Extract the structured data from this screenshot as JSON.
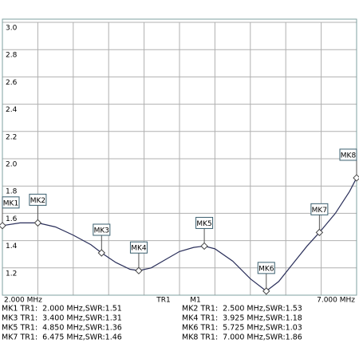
{
  "chart_data": {
    "type": "line",
    "x": [
      2.0,
      2.25,
      2.5,
      2.75,
      3.0,
      3.25,
      3.4,
      3.6,
      3.8,
      3.925,
      4.1,
      4.3,
      4.5,
      4.7,
      4.85,
      5.0,
      5.25,
      5.5,
      5.725,
      5.9,
      6.1,
      6.3,
      6.475,
      6.7,
      6.9,
      7.0
    ],
    "series": [
      {
        "name": "TR1",
        "color": "#2a2f5a",
        "values": [
          1.51,
          1.53,
          1.53,
          1.5,
          1.44,
          1.37,
          1.31,
          1.24,
          1.19,
          1.18,
          1.2,
          1.26,
          1.32,
          1.35,
          1.36,
          1.34,
          1.25,
          1.12,
          1.03,
          1.1,
          1.23,
          1.36,
          1.46,
          1.6,
          1.76,
          1.86
        ]
      }
    ],
    "xlim": [
      2,
      7
    ],
    "xticks": [
      {
        "value": 2,
        "label": "2.000 MHz"
      },
      {
        "value": 2.5,
        "label": null
      },
      {
        "value": 3,
        "label": null
      },
      {
        "value": 3.5,
        "label": null
      },
      {
        "value": 4,
        "label": null
      },
      {
        "value": 4.5,
        "label": null
      },
      {
        "value": 5,
        "label": null
      },
      {
        "value": 5.5,
        "label": null
      },
      {
        "value": 6,
        "label": null
      },
      {
        "value": 6.5,
        "label": null
      },
      {
        "value": 7,
        "label": "7.000 MHz"
      }
    ],
    "ylim": [
      1,
      3
    ],
    "yticks": [
      {
        "value": 1.2,
        "label": "1.2"
      },
      1.4,
      1.6,
      1.8,
      {
        "value": 2,
        "label": "2.0"
      },
      2.2,
      2.4,
      2.6,
      2.8,
      {
        "value": 3,
        "label": "3.0"
      }
    ],
    "grid": true,
    "active_marker": "M1",
    "markers": [
      {
        "label": "MK1",
        "x": 2.0,
        "swr": 1.51
      },
      {
        "label": "MK2",
        "x": 2.5,
        "swr": 1.53
      },
      {
        "label": "MK3",
        "x": 3.4,
        "swr": 1.31
      },
      {
        "label": "MK4",
        "x": 3.925,
        "swr": 1.18
      },
      {
        "label": "MK5",
        "x": 4.85,
        "swr": 1.36
      },
      {
        "label": "MK6",
        "x": 5.725,
        "swr": 1.03
      },
      {
        "label": "MK7",
        "x": 6.475,
        "swr": 1.46
      },
      {
        "label": "MK8",
        "x": 7.0,
        "swr": 1.86
      }
    ],
    "readouts": [
      "MK1 TR1:  2.000 MHz,SWR:1.51",
      "MK2 TR1:  2.500 MHz,SWR:1.53",
      "MK3 TR1:  3.400 MHz,SWR:1.31",
      "MK4 TR1:  3.925 MHz,SWR:1.18",
      "MK5 TR1:  4.850 MHz,SWR:1.36",
      "MK6 TR1:  5.725 MHz,SWR:1.03",
      "MK7 TR1:  6.475 MHz,SWR:1.46",
      "MK8 TR1:  7.000 MHz,SWR:1.86"
    ]
  }
}
